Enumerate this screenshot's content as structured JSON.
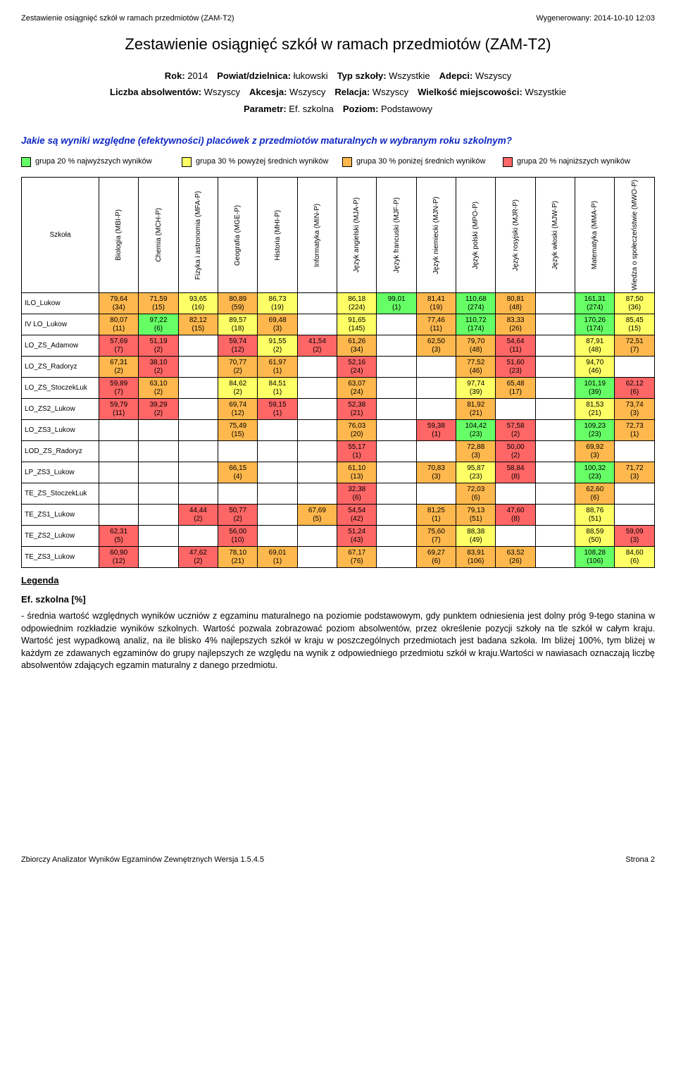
{
  "header": {
    "left": "Zestawienie osiągnięć szkół w ramach przedmiotów (ZAM-T2)",
    "right": "Wygenerowany: 2014-10-10 12:03"
  },
  "title": "Zestawienie osiągnięć szkół w ramach przedmiotów (ZAM-T2)",
  "params": {
    "line1": [
      {
        "l": "Rok:",
        "v": "2014"
      },
      {
        "l": "Powiat/dzielnica:",
        "v": "łukowski"
      },
      {
        "l": "Typ szkoły:",
        "v": "Wszystkie"
      },
      {
        "l": "Adepci:",
        "v": "Wszyscy"
      }
    ],
    "line2": [
      {
        "l": "Liczba absolwentów:",
        "v": "Wszyscy"
      },
      {
        "l": "Akcesja:",
        "v": "Wszyscy"
      },
      {
        "l": "Relacja:",
        "v": "Wszyscy"
      },
      {
        "l": "Wielkość miejscowości:",
        "v": "Wszystkie"
      }
    ],
    "line3": [
      {
        "l": "Parametr:",
        "v": "Ef. szkolna"
      },
      {
        "l": "Poziom:",
        "v": "Podstawowy"
      }
    ]
  },
  "question": "Jakie są wyniki względne (efektywności) placówek z przedmiotów maturalnych w wybranym roku szkolnym?",
  "legend_colors": {
    "highest": "#66ff66",
    "above": "#ffff66",
    "below": "#ffb84d",
    "lowest": "#ff6666"
  },
  "legend": [
    "grupa 20 % najwyższych wyników",
    "grupa 30 % powyżej średnich wyników",
    "grupa 30 % poniżej średnich wyników",
    "grupa 20 % najniższych wyników"
  ],
  "columns": [
    "Biologia (MBI-P)",
    "Chemia (MCH-P)",
    "Fizyka i astronomia (MFA-P)",
    "Geografia (MGE-P)",
    "Historia (MHI-P)",
    "Informatyka (MIN-P)",
    "Język angielski (MJA-P)",
    "Język francuski (MJF-P)",
    "Język niemiecki (MJN-P)",
    "Język polski (MPO-P)",
    "Język rosyjski (MJR-P)",
    "Język włoski (MJW-P)",
    "Matematyka (MMA-P)",
    "Wiedza o społeczeństwie (MWO-P)"
  ],
  "schools_label": "Szkoła",
  "schools": [
    "ILO_Lukow",
    "IV LO_Lukow",
    "LO_ZS_Adamow",
    "LO_ZS_Radoryz",
    "LO_ZS_StoczekLuk",
    "LO_ZS2_Lukow",
    "LO_ZS3_Lukow",
    "LOD_ZS_Radoryz",
    "LP_ZS3_Lukow",
    "TE_ZS_StoczekLuk",
    "TE_ZS1_Lukow",
    "TE_ZS2_Lukow",
    "TE_ZS3_Lukow"
  ],
  "cells": [
    [
      [
        "79,64",
        "(34)",
        "b"
      ],
      [
        "71,59",
        "(15)",
        "b"
      ],
      [
        "93,65",
        "(16)",
        "a"
      ],
      [
        "80,89",
        "(59)",
        "b"
      ],
      [
        "86,73",
        "(19)",
        "a"
      ],
      null,
      [
        "86,18",
        "(224)",
        "a"
      ],
      [
        "99,01",
        "(1)",
        "h"
      ],
      [
        "81,41",
        "(19)",
        "b"
      ],
      [
        "110,68",
        "(274)",
        "h"
      ],
      [
        "80,81",
        "(48)",
        "b"
      ],
      null,
      [
        "161,31",
        "(274)",
        "h"
      ],
      [
        "87,50",
        "(36)",
        "a"
      ]
    ],
    [
      [
        "80,07",
        "(11)",
        "b"
      ],
      [
        "97,22",
        "(6)",
        "h"
      ],
      [
        "82,12",
        "(15)",
        "b"
      ],
      [
        "89,57",
        "(18)",
        "a"
      ],
      [
        "69,48",
        "(3)",
        "b"
      ],
      null,
      [
        "91,65",
        "(145)",
        "a"
      ],
      null,
      [
        "77,46",
        "(11)",
        "b"
      ],
      [
        "110,72",
        "(174)",
        "h"
      ],
      [
        "83,33",
        "(26)",
        "b"
      ],
      null,
      [
        "170,26",
        "(174)",
        "h"
      ],
      [
        "85,45",
        "(15)",
        "a"
      ]
    ],
    [
      [
        "57,69",
        "(7)",
        "l"
      ],
      [
        "51,19",
        "(2)",
        "l"
      ],
      null,
      [
        "59,74",
        "(12)",
        "l"
      ],
      [
        "91,55",
        "(2)",
        "a"
      ],
      [
        "41,54",
        "(2)",
        "l"
      ],
      [
        "61,26",
        "(34)",
        "b"
      ],
      null,
      [
        "62,50",
        "(3)",
        "b"
      ],
      [
        "79,70",
        "(48)",
        "b"
      ],
      [
        "54,64",
        "(11)",
        "l"
      ],
      null,
      [
        "87,91",
        "(48)",
        "a"
      ],
      [
        "72,51",
        "(7)",
        "b"
      ]
    ],
    [
      [
        "67,31",
        "(2)",
        "b"
      ],
      [
        "38,10",
        "(2)",
        "l"
      ],
      null,
      [
        "70,77",
        "(2)",
        "b"
      ],
      [
        "61,97",
        "(1)",
        "b"
      ],
      null,
      [
        "52,16",
        "(24)",
        "l"
      ],
      null,
      null,
      [
        "77,52",
        "(46)",
        "b"
      ],
      [
        "51,60",
        "(23)",
        "l"
      ],
      null,
      [
        "94,70",
        "(46)",
        "a"
      ],
      null
    ],
    [
      [
        "59,89",
        "(7)",
        "l"
      ],
      [
        "63,10",
        "(2)",
        "b"
      ],
      null,
      [
        "84,62",
        "(2)",
        "a"
      ],
      [
        "84,51",
        "(1)",
        "a"
      ],
      null,
      [
        "63,07",
        "(24)",
        "b"
      ],
      null,
      null,
      [
        "97,74",
        "(39)",
        "a"
      ],
      [
        "65,48",
        "(17)",
        "b"
      ],
      null,
      [
        "101,19",
        "(39)",
        "h"
      ],
      [
        "62,12",
        "(6)",
        "l"
      ]
    ],
    [
      [
        "59,79",
        "(11)",
        "l"
      ],
      [
        "39,29",
        "(2)",
        "l"
      ],
      null,
      [
        "69,74",
        "(12)",
        "b"
      ],
      [
        "59,15",
        "(1)",
        "l"
      ],
      null,
      [
        "52,38",
        "(21)",
        "l"
      ],
      null,
      null,
      [
        "81,92",
        "(21)",
        "b"
      ],
      null,
      null,
      [
        "81,53",
        "(21)",
        "a"
      ],
      [
        "73,74",
        "(3)",
        "b"
      ]
    ],
    [
      null,
      null,
      null,
      [
        "75,49",
        "(15)",
        "b"
      ],
      null,
      null,
      [
        "76,03",
        "(20)",
        "b"
      ],
      null,
      [
        "59,38",
        "(1)",
        "l"
      ],
      [
        "104,42",
        "(23)",
        "h"
      ],
      [
        "57,58",
        "(2)",
        "l"
      ],
      null,
      [
        "109,23",
        "(23)",
        "h"
      ],
      [
        "72,73",
        "(1)",
        "b"
      ]
    ],
    [
      null,
      null,
      null,
      null,
      null,
      null,
      [
        "55,17",
        "(1)",
        "l"
      ],
      null,
      null,
      [
        "72,88",
        "(3)",
        "b"
      ],
      [
        "50,00",
        "(2)",
        "l"
      ],
      null,
      [
        "69,92",
        "(3)",
        "b"
      ],
      null
    ],
    [
      null,
      null,
      null,
      [
        "66,15",
        "(4)",
        "b"
      ],
      null,
      null,
      [
        "61,10",
        "(13)",
        "b"
      ],
      null,
      [
        "70,83",
        "(3)",
        "b"
      ],
      [
        "95,87",
        "(23)",
        "a"
      ],
      [
        "58,84",
        "(8)",
        "l"
      ],
      null,
      [
        "100,32",
        "(23)",
        "h"
      ],
      [
        "71,72",
        "(3)",
        "b"
      ]
    ],
    [
      null,
      null,
      null,
      null,
      null,
      null,
      [
        "32,38",
        "(6)",
        "l"
      ],
      null,
      null,
      [
        "72,03",
        "(6)",
        "b"
      ],
      null,
      null,
      [
        "62,60",
        "(6)",
        "b"
      ],
      null
    ],
    [
      null,
      null,
      [
        "44,44",
        "(2)",
        "l"
      ],
      [
        "50,77",
        "(2)",
        "l"
      ],
      null,
      [
        "67,69",
        "(5)",
        "b"
      ],
      [
        "54,54",
        "(42)",
        "l"
      ],
      null,
      [
        "81,25",
        "(1)",
        "b"
      ],
      [
        "79,13",
        "(51)",
        "b"
      ],
      [
        "47,60",
        "(8)",
        "l"
      ],
      null,
      [
        "88,76",
        "(51)",
        "a"
      ],
      null
    ],
    [
      [
        "62,31",
        "(5)",
        "l"
      ],
      null,
      null,
      [
        "56,00",
        "(10)",
        "l"
      ],
      null,
      null,
      [
        "51,24",
        "(43)",
        "l"
      ],
      null,
      [
        "75,60",
        "(7)",
        "b"
      ],
      [
        "88,38",
        "(49)",
        "a"
      ],
      null,
      null,
      [
        "88,59",
        "(50)",
        "a"
      ],
      [
        "59,09",
        "(3)",
        "l"
      ]
    ],
    [
      [
        "60,90",
        "(12)",
        "l"
      ],
      null,
      [
        "47,62",
        "(2)",
        "l"
      ],
      [
        "78,10",
        "(21)",
        "b"
      ],
      [
        "69,01",
        "(1)",
        "b"
      ],
      null,
      [
        "67,17",
        "(76)",
        "b"
      ],
      null,
      [
        "69,27",
        "(6)",
        "b"
      ],
      [
        "83,91",
        "(106)",
        "b"
      ],
      [
        "63,52",
        "(26)",
        "b"
      ],
      null,
      [
        "108,28",
        "(106)",
        "h"
      ],
      [
        "84,60",
        "(6)",
        "a"
      ]
    ]
  ],
  "legend_link": "Legenda",
  "ef_title": "Ef. szkolna [%]",
  "description": "- średnia wartość względnych wyników uczniów z egzaminu maturalnego na poziomie podstawowym, gdy punktem odniesienia jest dolny próg 9-tego stanina w odpowiednim rozkładzie wyników szkolnych. Wartość pozwala zobrazować poziom absolwentów, przez określenie pozycji szkoły na tle szkół w całym kraju. Wartość jest wypadkową analiz, na ile blisko 4% najlepszych szkół w kraju w poszczególnych przedmiotach jest badana szkoła. Im bliżej 100%, tym bliżej w każdym ze zdawanych egzaminów do grupy najlepszych ze względu na wynik z odpowiedniego przedmiotu szkół w kraju.Wartości w nawiasach oznaczają liczbę absolwentów zdających egzamin maturalny z danego przedmiotu.",
  "footer": {
    "left": "Zbiorczy Analizator Wyników Egzaminów Zewnętrznych Wersja 1.5.4.5",
    "right": "Strona 2"
  }
}
